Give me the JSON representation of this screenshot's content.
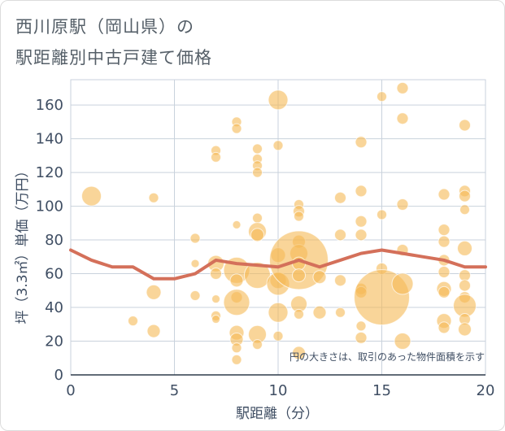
{
  "title_line1": "西川原駅（岡山県）の",
  "title_line2": "駅距離別中古戸建て価格",
  "chart_data": {
    "type": "scatter",
    "title": "西川原駅（岡山県）の駅距離別中古戸建て価格",
    "xlabel": "駅距離（分）",
    "ylabel": "坪（3.3㎡）単価（万円）",
    "xlim": [
      0,
      20
    ],
    "ylim": [
      0,
      175
    ],
    "x_ticks": [
      0,
      5,
      10,
      15,
      20
    ],
    "y_ticks": [
      0,
      20,
      40,
      60,
      80,
      100,
      120,
      140,
      160
    ],
    "grid": true,
    "note": "円の大きさは、取引のあった物件面積を示す",
    "colors": {
      "bubble": "#f5b955",
      "trend": "#d4705a",
      "grid": "#c9d2dc"
    },
    "bubbles": [
      {
        "x": 1,
        "y": 106,
        "s": 12
      },
      {
        "x": 3,
        "y": 32,
        "s": 6
      },
      {
        "x": 4,
        "y": 105,
        "s": 6
      },
      {
        "x": 4,
        "y": 49,
        "s": 9
      },
      {
        "x": 4,
        "y": 26,
        "s": 8
      },
      {
        "x": 6,
        "y": 81,
        "s": 6
      },
      {
        "x": 6,
        "y": 66,
        "s": 5
      },
      {
        "x": 6,
        "y": 47,
        "s": 6
      },
      {
        "x": 7,
        "y": 133,
        "s": 6
      },
      {
        "x": 7,
        "y": 129,
        "s": 6
      },
      {
        "x": 7,
        "y": 66,
        "s": 10
      },
      {
        "x": 7,
        "y": 60,
        "s": 7
      },
      {
        "x": 7,
        "y": 45,
        "s": 5
      },
      {
        "x": 7,
        "y": 35,
        "s": 6
      },
      {
        "x": 7,
        "y": 33,
        "s": 5
      },
      {
        "x": 8,
        "y": 150,
        "s": 6
      },
      {
        "x": 8,
        "y": 146,
        "s": 6
      },
      {
        "x": 8,
        "y": 89,
        "s": 5
      },
      {
        "x": 8,
        "y": 62,
        "s": 16
      },
      {
        "x": 8,
        "y": 56,
        "s": 8
      },
      {
        "x": 8,
        "y": 46,
        "s": 7
      },
      {
        "x": 8,
        "y": 43,
        "s": 16
      },
      {
        "x": 8,
        "y": 25,
        "s": 9
      },
      {
        "x": 8,
        "y": 21,
        "s": 8
      },
      {
        "x": 8,
        "y": 16,
        "s": 6
      },
      {
        "x": 8,
        "y": 9,
        "s": 6
      },
      {
        "x": 9,
        "y": 134,
        "s": 6
      },
      {
        "x": 9,
        "y": 128,
        "s": 6
      },
      {
        "x": 9,
        "y": 124,
        "s": 6
      },
      {
        "x": 9,
        "y": 120,
        "s": 6
      },
      {
        "x": 9,
        "y": 93,
        "s": 6
      },
      {
        "x": 9,
        "y": 85,
        "s": 11
      },
      {
        "x": 9,
        "y": 83,
        "s": 8
      },
      {
        "x": 9,
        "y": 59,
        "s": 16
      },
      {
        "x": 9,
        "y": 24,
        "s": 11
      },
      {
        "x": 9,
        "y": 18,
        "s": 6
      },
      {
        "x": 10,
        "y": 163,
        "s": 12
      },
      {
        "x": 10,
        "y": 136,
        "s": 6
      },
      {
        "x": 10,
        "y": 71,
        "s": 9
      },
      {
        "x": 10,
        "y": 56,
        "s": 10
      },
      {
        "x": 10,
        "y": 54,
        "s": 14
      },
      {
        "x": 10,
        "y": 37,
        "s": 12
      },
      {
        "x": 10,
        "y": 23,
        "s": 6
      },
      {
        "x": 11,
        "y": 101,
        "s": 6
      },
      {
        "x": 11,
        "y": 97,
        "s": 7
      },
      {
        "x": 11,
        "y": 94,
        "s": 6
      },
      {
        "x": 11,
        "y": 79,
        "s": 8
      },
      {
        "x": 11,
        "y": 72,
        "s": 11
      },
      {
        "x": 11,
        "y": 68,
        "s": 36
      },
      {
        "x": 11,
        "y": 66,
        "s": 8
      },
      {
        "x": 11,
        "y": 59,
        "s": 8
      },
      {
        "x": 11,
        "y": 42,
        "s": 10
      },
      {
        "x": 11,
        "y": 36,
        "s": 6
      },
      {
        "x": 11,
        "y": 13,
        "s": 8
      },
      {
        "x": 12,
        "y": 58,
        "s": 8
      },
      {
        "x": 12,
        "y": 37,
        "s": 8
      },
      {
        "x": 13,
        "y": 105,
        "s": 7
      },
      {
        "x": 13,
        "y": 83,
        "s": 7
      },
      {
        "x": 13,
        "y": 56,
        "s": 7
      },
      {
        "x": 13,
        "y": 37,
        "s": 6
      },
      {
        "x": 14,
        "y": 138,
        "s": 7
      },
      {
        "x": 14,
        "y": 109,
        "s": 7
      },
      {
        "x": 14,
        "y": 91,
        "s": 7
      },
      {
        "x": 14,
        "y": 83,
        "s": 7
      },
      {
        "x": 14,
        "y": 51,
        "s": 7
      },
      {
        "x": 14,
        "y": 49,
        "s": 7
      },
      {
        "x": 14,
        "y": 29,
        "s": 6
      },
      {
        "x": 14,
        "y": 22,
        "s": 7
      },
      {
        "x": 15,
        "y": 165,
        "s": 6
      },
      {
        "x": 15,
        "y": 95,
        "s": 6
      },
      {
        "x": 15,
        "y": 63,
        "s": 7
      },
      {
        "x": 15,
        "y": 46,
        "s": 34
      },
      {
        "x": 16,
        "y": 170,
        "s": 7
      },
      {
        "x": 16,
        "y": 152,
        "s": 7
      },
      {
        "x": 16,
        "y": 101,
        "s": 7
      },
      {
        "x": 16,
        "y": 74,
        "s": 7
      },
      {
        "x": 16,
        "y": 54,
        "s": 13
      },
      {
        "x": 16,
        "y": 20,
        "s": 10
      },
      {
        "x": 18,
        "y": 107,
        "s": 7
      },
      {
        "x": 18,
        "y": 86,
        "s": 7
      },
      {
        "x": 18,
        "y": 79,
        "s": 7
      },
      {
        "x": 18,
        "y": 68,
        "s": 7
      },
      {
        "x": 18,
        "y": 61,
        "s": 7
      },
      {
        "x": 18,
        "y": 51,
        "s": 9
      },
      {
        "x": 18,
        "y": 49,
        "s": 7
      },
      {
        "x": 18,
        "y": 32,
        "s": 9
      },
      {
        "x": 18,
        "y": 28,
        "s": 7
      },
      {
        "x": 19,
        "y": 148,
        "s": 7
      },
      {
        "x": 19,
        "y": 109,
        "s": 7
      },
      {
        "x": 19,
        "y": 106,
        "s": 7
      },
      {
        "x": 19,
        "y": 98,
        "s": 6
      },
      {
        "x": 19,
        "y": 75,
        "s": 9
      },
      {
        "x": 19,
        "y": 59,
        "s": 7
      },
      {
        "x": 19,
        "y": 53,
        "s": 7
      },
      {
        "x": 19,
        "y": 46,
        "s": 7
      },
      {
        "x": 19,
        "y": 41,
        "s": 14
      },
      {
        "x": 19,
        "y": 33,
        "s": 7
      },
      {
        "x": 19,
        "y": 27,
        "s": 8
      }
    ],
    "trend": {
      "x": [
        0,
        1,
        2,
        3,
        4,
        5,
        6,
        7,
        8,
        9,
        10,
        11,
        12,
        13,
        14,
        15,
        16,
        17,
        18,
        19,
        20
      ],
      "y": [
        74,
        68,
        64,
        64,
        57,
        57,
        60,
        68,
        66,
        65,
        64,
        68,
        64,
        68,
        72,
        74,
        72,
        70,
        68,
        64,
        64
      ]
    }
  }
}
